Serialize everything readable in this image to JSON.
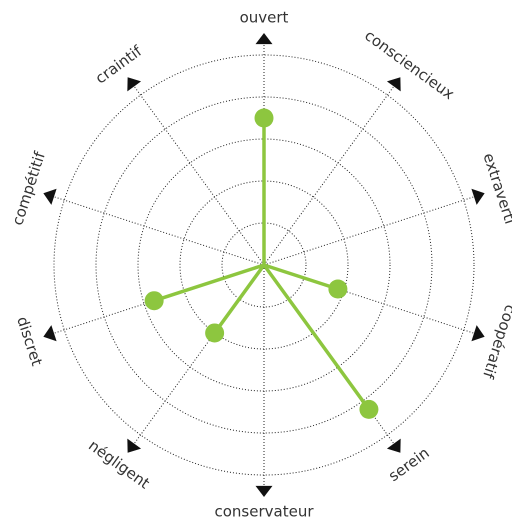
{
  "chart_data": {
    "type": "radar",
    "categories": [
      "ouvert",
      "consciencieux",
      "extraverti",
      "coopératif",
      "serein",
      "conservateur",
      "négligent",
      "discret",
      "compétitif",
      "craintif"
    ],
    "series": [
      {
        "color": "#8dc63f",
        "values": [
          3.5,
          0,
          0,
          1.85,
          4.25,
          0,
          2,
          2.75,
          0,
          0
        ]
      }
    ],
    "ylim": [
      0,
      5
    ],
    "yticks": [
      1,
      2,
      3,
      4,
      5
    ],
    "grid": true
  }
}
